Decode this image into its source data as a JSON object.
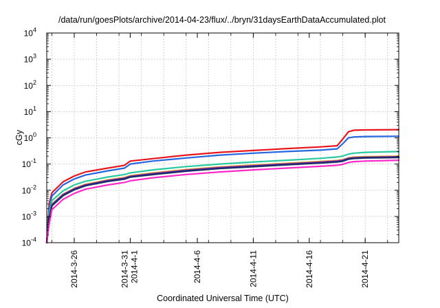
{
  "chart_data": {
    "type": "line",
    "title": "/data/run/goesPlots/archive/2014-04-23/flux/../bryn/31daysEarthDataAccumulated.plot",
    "xlabel": "Coordinated Universal Time (UTC)",
    "ylabel": "cGy",
    "y_scale": "log",
    "ylim": [
      0.0001,
      10000
    ],
    "xlim": [
      "2014-03-23T13:00",
      "2014-04-24T00:00"
    ],
    "grid": true,
    "legend": "none",
    "y_ticks": [
      {
        "value": 0.0001,
        "base": "10",
        "exp": "-4"
      },
      {
        "value": 0.001,
        "base": "10",
        "exp": "-3"
      },
      {
        "value": 0.01,
        "base": "10",
        "exp": "-2"
      },
      {
        "value": 0.1,
        "base": "10",
        "exp": "-1"
      },
      {
        "value": 1,
        "base": "10",
        "exp": "0"
      },
      {
        "value": 10,
        "base": "10",
        "exp": "1"
      },
      {
        "value": 100,
        "base": "10",
        "exp": "2"
      },
      {
        "value": 1000,
        "base": "10",
        "exp": "3"
      },
      {
        "value": 10000,
        "base": "10",
        "exp": "4"
      }
    ],
    "x_ticks": [
      {
        "date": "2014-03-26",
        "label": "2014-3-26"
      },
      {
        "date": "2014-03-31",
        "label": "2014-3-31",
        "label2": "2014-4-1"
      },
      {
        "date": "2014-04-06",
        "label": "2014-4-6"
      },
      {
        "date": "2014-04-11",
        "label": "2014-4-11"
      },
      {
        "date": "2014-04-16",
        "label": "2014-4-16"
      },
      {
        "date": "2014-04-21",
        "label": "2014-4-21"
      }
    ],
    "x_grid": [
      "2014-03-24",
      "2014-03-26",
      "2014-03-28",
      "2014-03-30",
      "2014-04-01",
      "2014-04-03",
      "2014-04-05",
      "2014-04-07",
      "2014-04-09",
      "2014-04-11",
      "2014-04-13",
      "2014-04-15",
      "2014-04-17",
      "2014-04-19",
      "2014-04-21",
      "2014-04-23"
    ],
    "series": [
      {
        "color": "#e8141c",
        "width": 2.2,
        "x": [
          "2014-03-23T13:00",
          "2014-03-23T18:00",
          "2014-03-24T00:00",
          "2014-03-25T00:00",
          "2014-03-26T00:00",
          "2014-03-27T00:00",
          "2014-03-29T00:00",
          "2014-03-30T12:00",
          "2014-03-31T00:00",
          "2014-04-02T00:00",
          "2014-04-05T00:00",
          "2014-04-08T00:00",
          "2014-04-11T00:00",
          "2014-04-14T00:00",
          "2014-04-17T00:00",
          "2014-04-18T12:00",
          "2014-04-19T00:00",
          "2014-04-19T12:00",
          "2014-04-20T00:00",
          "2014-04-21T00:00",
          "2014-04-24T00:00"
        ],
        "y": [
          0.0001,
          0.003,
          0.008,
          0.021,
          0.035,
          0.05,
          0.07,
          0.09,
          0.13,
          0.16,
          0.22,
          0.28,
          0.33,
          0.39,
          0.45,
          0.5,
          0.9,
          1.7,
          1.95,
          2.0,
          2.05
        ]
      },
      {
        "color": "#2466e0",
        "width": 2.2,
        "x": [
          "2014-03-23T13:00",
          "2014-03-23T18:00",
          "2014-03-24T00:00",
          "2014-03-25T00:00",
          "2014-03-26T00:00",
          "2014-03-27T00:00",
          "2014-03-29T00:00",
          "2014-03-30T12:00",
          "2014-03-31T00:00",
          "2014-04-02T00:00",
          "2014-04-05T00:00",
          "2014-04-08T00:00",
          "2014-04-11T00:00",
          "2014-04-14T00:00",
          "2014-04-17T00:00",
          "2014-04-18T12:00",
          "2014-04-19T00:00",
          "2014-04-19T12:00",
          "2014-04-20T00:00",
          "2014-04-21T00:00",
          "2014-04-24T00:00"
        ],
        "y": [
          0.0001,
          0.002,
          0.006,
          0.016,
          0.027,
          0.038,
          0.055,
          0.07,
          0.1,
          0.13,
          0.17,
          0.22,
          0.26,
          0.3,
          0.34,
          0.38,
          0.6,
          1.0,
          1.08,
          1.12,
          1.15
        ]
      },
      {
        "color": "#28c8a0",
        "width": 2.2,
        "x": [
          "2014-03-23T13:00",
          "2014-03-23T18:00",
          "2014-03-24T00:00",
          "2014-03-25T00:00",
          "2014-03-26T00:00",
          "2014-03-27T00:00",
          "2014-03-29T00:00",
          "2014-03-30T12:00",
          "2014-03-31T00:00",
          "2014-04-02T00:00",
          "2014-04-05T00:00",
          "2014-04-08T00:00",
          "2014-04-11T00:00",
          "2014-04-14T00:00",
          "2014-04-17T00:00",
          "2014-04-18T12:00",
          "2014-04-19T00:00",
          "2014-04-19T12:00",
          "2014-04-20T00:00",
          "2014-04-21T00:00",
          "2014-04-24T00:00"
        ],
        "y": [
          0.0001,
          0.0012,
          0.004,
          0.0095,
          0.016,
          0.022,
          0.032,
          0.04,
          0.046,
          0.06,
          0.08,
          0.1,
          0.12,
          0.14,
          0.165,
          0.185,
          0.2,
          0.24,
          0.26,
          0.28,
          0.3
        ]
      },
      {
        "color": "#d8a020",
        "width": 2.0,
        "x": [
          "2014-03-23T13:00",
          "2014-03-23T18:00",
          "2014-03-24T00:00",
          "2014-03-25T00:00",
          "2014-03-26T00:00",
          "2014-03-27T00:00",
          "2014-03-29T00:00",
          "2014-03-30T12:00",
          "2014-03-31T00:00",
          "2014-04-02T00:00",
          "2014-04-05T00:00",
          "2014-04-08T00:00",
          "2014-04-11T00:00",
          "2014-04-14T00:00",
          "2014-04-17T00:00",
          "2014-04-18T12:00",
          "2014-04-19T00:00",
          "2014-04-19T12:00",
          "2014-04-20T00:00",
          "2014-04-21T00:00",
          "2014-04-24T00:00"
        ],
        "y": [
          0.0001,
          0.0009,
          0.003,
          0.0072,
          0.012,
          0.017,
          0.025,
          0.031,
          0.036,
          0.046,
          0.062,
          0.078,
          0.092,
          0.108,
          0.126,
          0.138,
          0.148,
          0.175,
          0.185,
          0.192,
          0.2
        ]
      },
      {
        "color": "#8a18c8",
        "width": 2.0,
        "x": [
          "2014-03-23T13:00",
          "2014-03-23T18:00",
          "2014-03-24T00:00",
          "2014-03-25T00:00",
          "2014-03-26T00:00",
          "2014-03-27T00:00",
          "2014-03-29T00:00",
          "2014-03-30T12:00",
          "2014-03-31T00:00",
          "2014-04-02T00:00",
          "2014-04-05T00:00",
          "2014-04-08T00:00",
          "2014-04-11T00:00",
          "2014-04-14T00:00",
          "2014-04-17T00:00",
          "2014-04-18T12:00",
          "2014-04-19T00:00",
          "2014-04-19T12:00",
          "2014-04-20T00:00",
          "2014-04-21T00:00",
          "2014-04-24T00:00"
        ],
        "y": [
          0.0001,
          0.00085,
          0.0028,
          0.0068,
          0.0113,
          0.016,
          0.0235,
          0.029,
          0.034,
          0.043,
          0.058,
          0.073,
          0.086,
          0.101,
          0.118,
          0.13,
          0.14,
          0.165,
          0.175,
          0.182,
          0.19
        ]
      },
      {
        "color": "#1c2c6c",
        "width": 2.6,
        "x": [
          "2014-03-23T13:00",
          "2014-03-23T18:00",
          "2014-03-24T00:00",
          "2014-03-25T00:00",
          "2014-03-26T00:00",
          "2014-03-27T00:00",
          "2014-03-29T00:00",
          "2014-03-30T12:00",
          "2014-03-31T00:00",
          "2014-04-02T00:00",
          "2014-04-05T00:00",
          "2014-04-08T00:00",
          "2014-04-11T00:00",
          "2014-04-14T00:00",
          "2014-04-17T00:00",
          "2014-04-18T12:00",
          "2014-04-19T00:00",
          "2014-04-19T12:00",
          "2014-04-20T00:00",
          "2014-04-21T00:00",
          "2014-04-24T00:00"
        ],
        "y": [
          0.0001,
          0.0008,
          0.0026,
          0.0063,
          0.0105,
          0.015,
          0.022,
          0.027,
          0.032,
          0.04,
          0.054,
          0.068,
          0.08,
          0.094,
          0.11,
          0.121,
          0.13,
          0.155,
          0.165,
          0.172,
          0.18
        ]
      },
      {
        "color": "#ff28c8",
        "width": 2.2,
        "x": [
          "2014-03-23T13:00",
          "2014-03-23T18:00",
          "2014-03-24T00:00",
          "2014-03-25T00:00",
          "2014-03-26T00:00",
          "2014-03-27T00:00",
          "2014-03-29T00:00",
          "2014-03-30T12:00",
          "2014-03-31T00:00",
          "2014-04-02T00:00",
          "2014-04-05T00:00",
          "2014-04-08T00:00",
          "2014-04-11T00:00",
          "2014-04-14T00:00",
          "2014-04-17T00:00",
          "2014-04-18T12:00",
          "2014-04-19T00:00",
          "2014-04-19T12:00",
          "2014-04-20T00:00",
          "2014-04-21T00:00",
          "2014-04-24T00:00"
        ],
        "y": [
          0.0001,
          0.0005,
          0.0018,
          0.0045,
          0.0076,
          0.011,
          0.016,
          0.02,
          0.023,
          0.03,
          0.04,
          0.05,
          0.06,
          0.07,
          0.082,
          0.09,
          0.098,
          0.115,
          0.124,
          0.13,
          0.14
        ]
      }
    ]
  }
}
